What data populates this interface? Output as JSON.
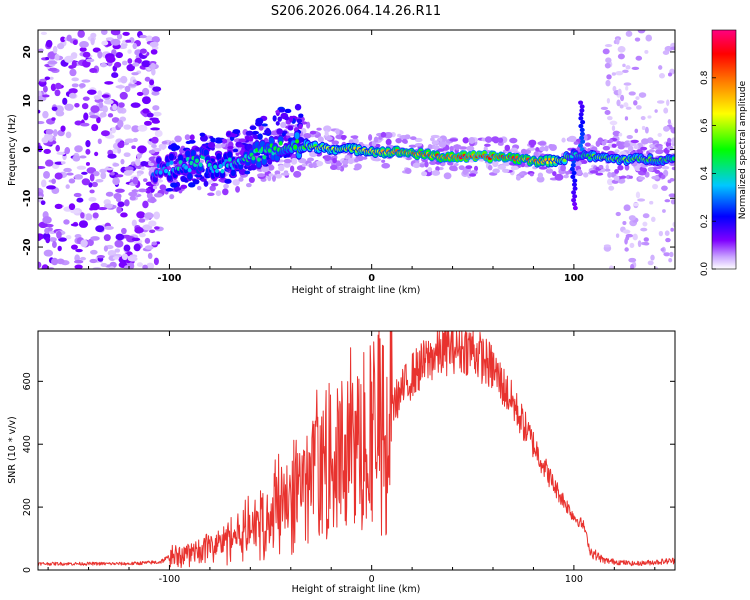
{
  "title": "S206.2026.064.14.26.R11",
  "chart_data": [
    {
      "type": "heatmap",
      "xlabel": "Height of straight line (km)",
      "ylabel": "Frequency (Hz)",
      "xlim": [
        -165,
        150
      ],
      "ylim": [
        -24.5,
        24.5
      ],
      "xticks": [
        -100,
        0,
        100
      ],
      "yticks": [
        -20,
        -10,
        0,
        10,
        20
      ],
      "colorbar": {
        "label": "Normalized spectral amplitude",
        "range": [
          0,
          1
        ],
        "ticks": [
          "0.0",
          "0.2",
          "0.4",
          "0.6",
          "0.8"
        ],
        "colors": [
          "#ffffff",
          "#7f00ff",
          "#0000ff",
          "#00c8ff",
          "#00ff00",
          "#ffff00",
          "#ff8000",
          "#ff0000",
          "#ff0080"
        ]
      },
      "ridge": {
        "height_km": [
          -105,
          -95,
          -85,
          -75,
          -65,
          -55,
          -45,
          -40,
          -35,
          -25,
          -15,
          -5,
          5,
          15,
          25,
          35,
          45,
          55,
          65,
          75,
          85,
          95,
          100,
          110,
          120,
          130,
          140,
          150
        ],
        "frequency_hz": [
          -4.5,
          -3.5,
          -2.5,
          -4,
          -2,
          -1,
          0.5,
          0.5,
          0.5,
          0.5,
          0,
          0,
          -0.5,
          -0.5,
          -1,
          -1.5,
          -1.5,
          -1.5,
          -1.5,
          -2,
          -2.5,
          -2,
          -1,
          -1.5,
          -2,
          -2,
          -2,
          -2
        ],
        "amplitude": [
          0.3,
          0.38,
          0.42,
          0.35,
          0.4,
          0.45,
          0.45,
          0.5,
          0.55,
          0.6,
          0.62,
          0.65,
          0.72,
          0.78,
          0.8,
          0.82,
          0.88,
          0.9,
          0.85,
          0.8,
          0.75,
          0.6,
          0.4,
          0.55,
          0.55,
          0.55,
          0.5,
          0.5
        ]
      },
      "vertical_feature": {
        "height_km": 100,
        "frequency_range_hz": [
          -12,
          10
        ]
      }
    },
    {
      "type": "line",
      "xlabel": "Height of straight line (km)",
      "ylabel": "SNR (10 * v/v)",
      "xlim": [
        -165,
        150
      ],
      "ylim": [
        0,
        760
      ],
      "xticks": [
        -100,
        0,
        100
      ],
      "yticks": [
        0,
        200,
        400,
        600
      ],
      "color": "#e8322e",
      "series": [
        {
          "name": "SNR",
          "x": [
            -165,
            -120,
            -105,
            -100,
            -90,
            -80,
            -70,
            -60,
            -50,
            -40,
            -30,
            -20,
            -10,
            0,
            10,
            20,
            30,
            40,
            50,
            60,
            70,
            80,
            90,
            100,
            105,
            108,
            115,
            130,
            150
          ],
          "y": [
            20,
            20,
            25,
            40,
            55,
            75,
            100,
            140,
            190,
            240,
            290,
            340,
            380,
            420,
            520,
            620,
            680,
            710,
            700,
            640,
            530,
            400,
            270,
            170,
            140,
            60,
            30,
            20,
            30
          ]
        }
      ]
    }
  ]
}
